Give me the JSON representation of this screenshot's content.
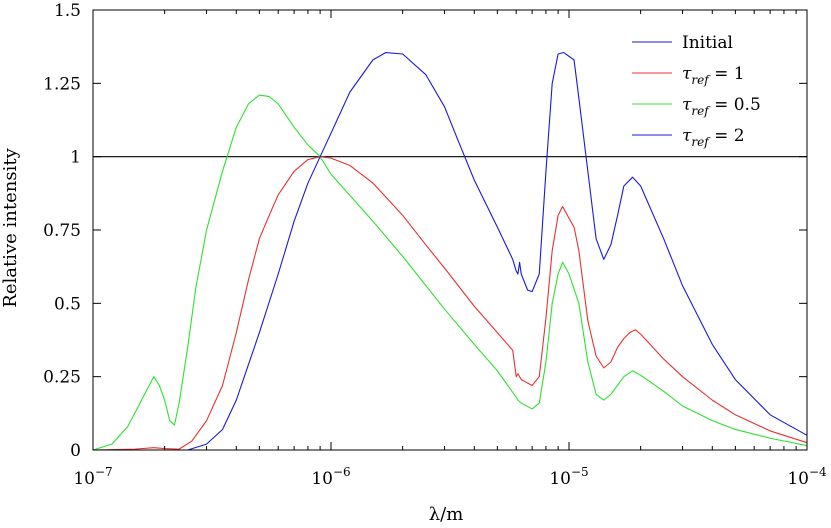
{
  "chart_data": {
    "type": "line",
    "xlabel": "λ/m",
    "ylabel": "Relative intensity",
    "xscale": "log",
    "xlim": [
      1e-07,
      0.0001
    ],
    "ylim": [
      0,
      1.5
    ],
    "x_ticks": [
      {
        "value": 1e-07,
        "base": "10",
        "exp": "−7"
      },
      {
        "value": 1e-06,
        "base": "10",
        "exp": "−6"
      },
      {
        "value": 1e-05,
        "base": "10",
        "exp": "−5"
      },
      {
        "value": 0.0001,
        "base": "10",
        "exp": "−4"
      }
    ],
    "y_ticks": [
      {
        "value": 0,
        "label": "0"
      },
      {
        "value": 0.25,
        "label": "0.25"
      },
      {
        "value": 0.5,
        "label": "0.5"
      },
      {
        "value": 0.75,
        "label": "0.75"
      },
      {
        "value": 1,
        "label": "1"
      },
      {
        "value": 1.25,
        "label": "1.25"
      },
      {
        "value": 1.5,
        "label": "1.5"
      }
    ],
    "grid": false,
    "legend_position": "top-right",
    "series": [
      {
        "name": "Initial",
        "legend_color": "#1a1ad6",
        "color": "#000000",
        "style": "hline",
        "points": [
          [
            1e-07,
            1.0
          ],
          [
            0.0001,
            1.0
          ]
        ]
      },
      {
        "name": "τ_ref = 1",
        "legend": {
          "symbol": "τ",
          "sub": "ref",
          "rhs": " = 1"
        },
        "color": "#e83030",
        "points": [
          [
            1e-07,
            0.0
          ],
          [
            1.5e-07,
            0.003
          ],
          [
            1.8e-07,
            0.008
          ],
          [
            2e-07,
            0.005
          ],
          [
            2.3e-07,
            0.003
          ],
          [
            2.6e-07,
            0.03
          ],
          [
            3e-07,
            0.1
          ],
          [
            3.5e-07,
            0.22
          ],
          [
            4e-07,
            0.4
          ],
          [
            4.5e-07,
            0.58
          ],
          [
            5e-07,
            0.72
          ],
          [
            5.5e-07,
            0.8
          ],
          [
            6e-07,
            0.87
          ],
          [
            7e-07,
            0.95
          ],
          [
            8e-07,
            0.99
          ],
          [
            9e-07,
            1.0
          ],
          [
            1e-06,
            0.995
          ],
          [
            1.2e-06,
            0.97
          ],
          [
            1.5e-06,
            0.91
          ],
          [
            2e-06,
            0.8
          ],
          [
            2.5e-06,
            0.7
          ],
          [
            3e-06,
            0.62
          ],
          [
            4e-06,
            0.49
          ],
          [
            5e-06,
            0.4
          ],
          [
            5.8e-06,
            0.34
          ],
          [
            6e-06,
            0.25
          ],
          [
            6.1e-06,
            0.26
          ],
          [
            6.3e-06,
            0.24
          ],
          [
            7e-06,
            0.22
          ],
          [
            7.5e-06,
            0.25
          ],
          [
            8e-06,
            0.45
          ],
          [
            8.5e-06,
            0.68
          ],
          [
            9e-06,
            0.8
          ],
          [
            9.4e-06,
            0.83
          ],
          [
            1e-05,
            0.79
          ],
          [
            1.05e-05,
            0.76
          ],
          [
            1.1e-05,
            0.68
          ],
          [
            1.2e-05,
            0.44
          ],
          [
            1.3e-05,
            0.32
          ],
          [
            1.4e-05,
            0.28
          ],
          [
            1.5e-05,
            0.3
          ],
          [
            1.6e-05,
            0.35
          ],
          [
            1.7e-05,
            0.38
          ],
          [
            1.8e-05,
            0.4
          ],
          [
            1.9e-05,
            0.41
          ],
          [
            2e-05,
            0.395
          ],
          [
            2.5e-05,
            0.31
          ],
          [
            3e-05,
            0.25
          ],
          [
            4e-05,
            0.17
          ],
          [
            5e-05,
            0.12
          ],
          [
            7e-05,
            0.065
          ],
          [
            0.0001,
            0.025
          ]
        ]
      },
      {
        "name": "τ_ref = 0.5",
        "legend": {
          "symbol": "τ",
          "sub": "ref",
          "rhs": " = 0.5"
        },
        "color": "#2ee02e",
        "points": [
          [
            1e-07,
            0.0
          ],
          [
            1.2e-07,
            0.02
          ],
          [
            1.4e-07,
            0.08
          ],
          [
            1.6e-07,
            0.17
          ],
          [
            1.8e-07,
            0.25
          ],
          [
            1.9e-07,
            0.22
          ],
          [
            2e-07,
            0.17
          ],
          [
            2.1e-07,
            0.1
          ],
          [
            2.2e-07,
            0.085
          ],
          [
            2.3e-07,
            0.16
          ],
          [
            2.5e-07,
            0.35
          ],
          [
            2.7e-07,
            0.55
          ],
          [
            3e-07,
            0.75
          ],
          [
            3.5e-07,
            0.95
          ],
          [
            4e-07,
            1.1
          ],
          [
            4.5e-07,
            1.18
          ],
          [
            5e-07,
            1.21
          ],
          [
            5.5e-07,
            1.205
          ],
          [
            6e-07,
            1.18
          ],
          [
            7e-07,
            1.1
          ],
          [
            8e-07,
            1.04
          ],
          [
            9e-07,
            1.0
          ],
          [
            1e-06,
            0.94
          ],
          [
            1.5e-06,
            0.78
          ],
          [
            2e-06,
            0.66
          ],
          [
            3e-06,
            0.48
          ],
          [
            4e-06,
            0.36
          ],
          [
            5e-06,
            0.27
          ],
          [
            6e-06,
            0.18
          ],
          [
            6.1e-06,
            0.17
          ],
          [
            6.3e-06,
            0.16
          ],
          [
            7e-06,
            0.14
          ],
          [
            7.5e-06,
            0.16
          ],
          [
            8e-06,
            0.3
          ],
          [
            8.5e-06,
            0.5
          ],
          [
            9e-06,
            0.6
          ],
          [
            9.4e-06,
            0.64
          ],
          [
            1e-05,
            0.6
          ],
          [
            1.1e-05,
            0.5
          ],
          [
            1.2e-05,
            0.3
          ],
          [
            1.3e-05,
            0.19
          ],
          [
            1.4e-05,
            0.17
          ],
          [
            1.5e-05,
            0.19
          ],
          [
            1.7e-05,
            0.25
          ],
          [
            1.85e-05,
            0.27
          ],
          [
            2e-05,
            0.255
          ],
          [
            2.5e-05,
            0.2
          ],
          [
            3e-05,
            0.15
          ],
          [
            4e-05,
            0.1
          ],
          [
            5e-05,
            0.07
          ],
          [
            7e-05,
            0.04
          ],
          [
            0.0001,
            0.015
          ]
        ]
      },
      {
        "name": "τ_ref = 2",
        "legend": {
          "symbol": "τ",
          "sub": "ref",
          "rhs": " = 2"
        },
        "color": "#1a1ad6",
        "points": [
          [
            1e-07,
            0.0
          ],
          [
            2.5e-07,
            0.0
          ],
          [
            3e-07,
            0.02
          ],
          [
            3.5e-07,
            0.07
          ],
          [
            4e-07,
            0.17
          ],
          [
            5e-07,
            0.4
          ],
          [
            6e-07,
            0.6
          ],
          [
            7e-07,
            0.78
          ],
          [
            8e-07,
            0.91
          ],
          [
            9e-07,
            1.0
          ],
          [
            1e-06,
            1.08
          ],
          [
            1.2e-06,
            1.22
          ],
          [
            1.5e-06,
            1.33
          ],
          [
            1.7e-06,
            1.355
          ],
          [
            2e-06,
            1.35
          ],
          [
            2.5e-06,
            1.28
          ],
          [
            3e-06,
            1.17
          ],
          [
            3.4e-06,
            1.06
          ],
          [
            4e-06,
            0.92
          ],
          [
            5e-06,
            0.76
          ],
          [
            5.8e-06,
            0.65
          ],
          [
            6e-06,
            0.61
          ],
          [
            6.1e-06,
            0.6
          ],
          [
            6.2e-06,
            0.64
          ],
          [
            6.3e-06,
            0.6
          ],
          [
            6.7e-06,
            0.545
          ],
          [
            7e-06,
            0.54
          ],
          [
            7.5e-06,
            0.6
          ],
          [
            8e-06,
            0.95
          ],
          [
            8.5e-06,
            1.25
          ],
          [
            9e-06,
            1.35
          ],
          [
            9.5e-06,
            1.355
          ],
          [
            1.05e-05,
            1.33
          ],
          [
            1.1e-05,
            1.2
          ],
          [
            1.2e-05,
            0.95
          ],
          [
            1.3e-05,
            0.72
          ],
          [
            1.4e-05,
            0.65
          ],
          [
            1.5e-05,
            0.7
          ],
          [
            1.6e-05,
            0.8
          ],
          [
            1.7e-05,
            0.9
          ],
          [
            1.85e-05,
            0.93
          ],
          [
            2e-05,
            0.9
          ],
          [
            2.5e-05,
            0.72
          ],
          [
            3e-05,
            0.56
          ],
          [
            4e-05,
            0.36
          ],
          [
            5e-05,
            0.24
          ],
          [
            7e-05,
            0.12
          ],
          [
            0.0001,
            0.05
          ]
        ]
      }
    ]
  }
}
